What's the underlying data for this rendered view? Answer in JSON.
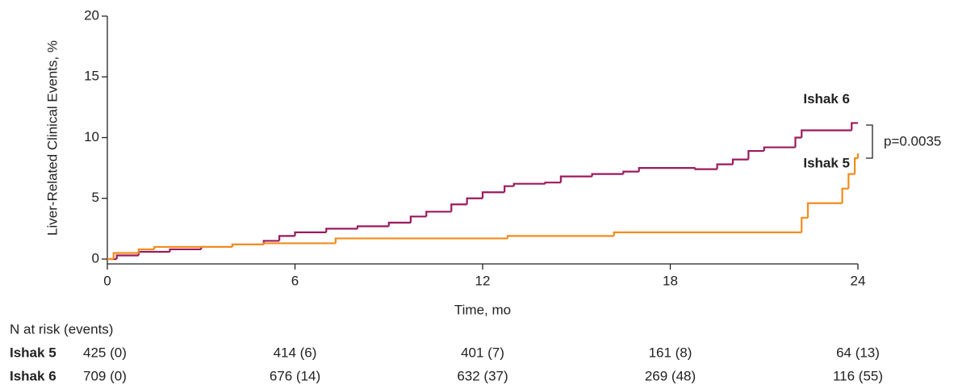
{
  "chart_data": {
    "type": "step",
    "y_label": "Liver-Related Clinical Events, %",
    "x_label": "Time, mo",
    "xlim": [
      0,
      24
    ],
    "xticks": [
      0,
      6,
      12,
      18,
      24
    ],
    "ylim": [
      0,
      20
    ],
    "yticks": [
      0,
      5,
      10,
      15,
      20
    ],
    "series": [
      {
        "name": "Ishak 6",
        "color": "#9b1a5d",
        "x": [
          0,
          0.3,
          1,
          2,
          3,
          4,
          5,
          5.5,
          6,
          7,
          8,
          9,
          9.7,
          10.2,
          11,
          11.5,
          12,
          12.7,
          13,
          14,
          14.5,
          15.5,
          16.5,
          17,
          18.8,
          19.5,
          20,
          20.5,
          21,
          22,
          22.2,
          23.8,
          24
        ],
        "values": [
          0,
          0.3,
          0.6,
          0.8,
          1.0,
          1.2,
          1.5,
          1.9,
          2.2,
          2.5,
          2.7,
          3.0,
          3.5,
          3.9,
          4.5,
          5.0,
          5.5,
          6.0,
          6.2,
          6.3,
          6.8,
          7.0,
          7.2,
          7.5,
          7.4,
          7.8,
          8.2,
          8.9,
          9.2,
          10.0,
          10.6,
          11.2,
          11.2
        ]
      },
      {
        "name": "Ishak 5",
        "color": "#f28c1c",
        "x": [
          0,
          0.2,
          1,
          1.5,
          4,
          5,
          7.3,
          12.8,
          16.2,
          22,
          22.2,
          22.4,
          23.5,
          23.7,
          23.9,
          24
        ],
        "values": [
          0,
          0.5,
          0.8,
          1.0,
          1.2,
          1.3,
          1.7,
          1.9,
          2.2,
          2.2,
          3.4,
          4.6,
          5.8,
          7.0,
          8.3,
          8.7
        ]
      }
    ],
    "annotation": "p=0.0035",
    "risk_table": {
      "title": "N at risk (events)",
      "rows": [
        {
          "name": "Ishak 5",
          "color": "#f28c1c",
          "cells": [
            "425 (0)",
            "414 (6)",
            "401 (7)",
            "161 (8)",
            "64 (13)"
          ]
        },
        {
          "name": "Ishak 6",
          "color": "#9b1a5d",
          "cells": [
            "709 (0)",
            "676 (14)",
            "632 (37)",
            "269 (48)",
            "116 (55)"
          ]
        }
      ]
    }
  }
}
